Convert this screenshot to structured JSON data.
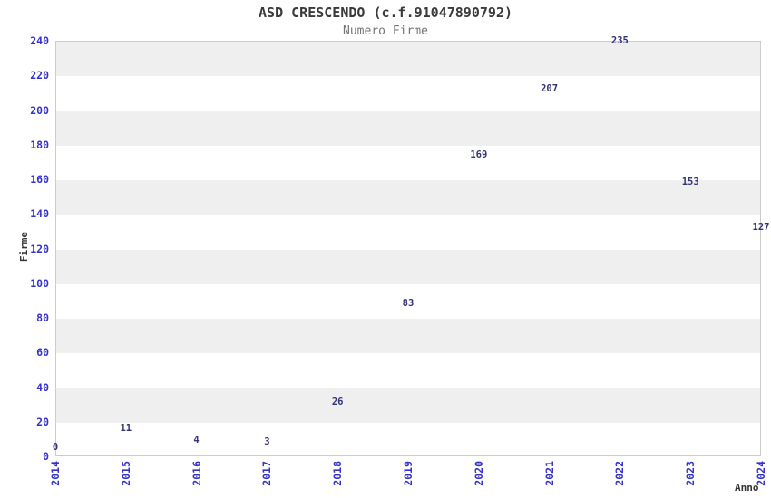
{
  "chart_data": {
    "type": "line",
    "title": "ASD CRESCENDO (c.f.91047890792)",
    "subtitle": "Numero Firme",
    "xlabel": "Anno",
    "ylabel": "Firme",
    "x": [
      "2014",
      "2015",
      "2016",
      "2017",
      "2018",
      "2019",
      "2020",
      "2021",
      "2022",
      "2023",
      "2024"
    ],
    "series": [
      {
        "name": "Numero Firme",
        "values": [
          0,
          11,
          4,
          3,
          26,
          83,
          169,
          207,
          235,
          153,
          127
        ]
      }
    ],
    "ylim": [
      0,
      240
    ],
    "ytick_step": 20,
    "yticks": [
      0,
      20,
      40,
      60,
      80,
      100,
      120,
      140,
      160,
      180,
      200,
      220,
      240
    ],
    "grid": "horizontal-alternating-bands",
    "legend": "none",
    "data_labels_visible": true,
    "colors": {
      "line": "#79aadd",
      "tick_label": "#3333cc",
      "data_label": "#333377",
      "band": "#efefef",
      "plot_border": "#cccccc",
      "title": "#3a3a3a",
      "subtitle": "#757575",
      "axis_label": "#333333"
    }
  }
}
